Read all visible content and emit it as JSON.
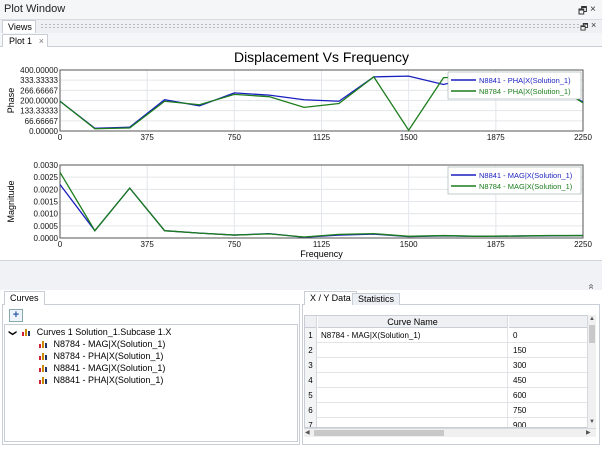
{
  "window": {
    "title": "Plot Window",
    "btn_float": "🗗",
    "btn_close": "×"
  },
  "views": {
    "tab_label": "Views",
    "btn_float": "🗗",
    "btn_close": "×"
  },
  "doc_tab": {
    "label": "Plot 1",
    "close": "×"
  },
  "chart_colors": {
    "blue": "#1a1fbf",
    "green": "#1c7d1c"
  },
  "chart_data": [
    {
      "type": "line",
      "title": "Displacement Vs Frequency",
      "ylabel": "Phase",
      "xlabel": "",
      "x_ticks": [
        "0",
        "375",
        "750",
        "1125",
        "1500",
        "1875",
        "2250"
      ],
      "y_ticks": [
        "0.00000",
        "66.66667",
        "133.33333",
        "200.00000",
        "266.66667",
        "333.33333",
        "400.00000"
      ],
      "xlim": [
        0,
        2250
      ],
      "ylim": [
        0,
        400
      ],
      "legend_position": "top-right",
      "series": [
        {
          "name": "N8841 - PHA|X(Solution_1)",
          "color": "#1a1fbf",
          "x": [
            0,
            150,
            300,
            450,
            600,
            750,
            900,
            1050,
            1200,
            1350,
            1500,
            1650,
            1800,
            1950,
            2100,
            2250
          ],
          "y": [
            195,
            18,
            25,
            205,
            165,
            250,
            235,
            205,
            195,
            355,
            360,
            305,
            360,
            330,
            320,
            190
          ]
        },
        {
          "name": "N8784 - PHA|X(Solution_1)",
          "color": "#1c7d1c",
          "x": [
            0,
            150,
            300,
            450,
            600,
            750,
            900,
            1050,
            1200,
            1350,
            1500,
            1650,
            1800,
            1950,
            2100,
            2250
          ],
          "y": [
            195,
            15,
            20,
            195,
            172,
            240,
            225,
            155,
            180,
            355,
            5,
            350,
            355,
            330,
            325,
            185
          ]
        }
      ]
    },
    {
      "type": "line",
      "title": "",
      "ylabel": "Magnitude",
      "xlabel": "Frequency",
      "x_ticks": [
        "0",
        "375",
        "750",
        "1125",
        "1500",
        "1875",
        "2250"
      ],
      "y_ticks": [
        "0.0000",
        "0.0005",
        "0.0010",
        "0.0015",
        "0.0020",
        "0.0025",
        "0.0030"
      ],
      "xlim": [
        0,
        2250
      ],
      "ylim": [
        0,
        0.003
      ],
      "legend_position": "top-right",
      "series": [
        {
          "name": "N8841 - MAG|X(Solution_1)",
          "color": "#1a1fbf",
          "x": [
            0,
            150,
            300,
            450,
            600,
            750,
            900,
            1050,
            1200,
            1350,
            1500,
            1650,
            1800,
            1950,
            2100,
            2250
          ],
          "y": [
            0.0022,
            0.0003,
            0.00205,
            0.0003,
            0.0002,
            0.00012,
            0.00018,
            3e-05,
            0.00012,
            0.00016,
            6e-05,
            9e-05,
            7e-05,
            8e-05,
            9e-05,
            0.0001
          ]
        },
        {
          "name": "N8784 - MAG|X(Solution_1)",
          "color": "#1c7d1c",
          "x": [
            0,
            150,
            300,
            450,
            600,
            750,
            900,
            1050,
            1200,
            1350,
            1500,
            1650,
            1800,
            1950,
            2100,
            2250
          ],
          "y": [
            0.0027,
            0.0003,
            0.00205,
            0.0003,
            0.0002,
            0.00012,
            0.00017,
            4e-05,
            0.00015,
            0.00018,
            7e-05,
            0.0001,
            7e-05,
            8e-05,
            0.0001,
            0.0001
          ]
        }
      ]
    }
  ],
  "collapse_glyph": "»",
  "curves_panel": {
    "tab": "Curves",
    "add_label": "+",
    "root": {
      "expander": "❯",
      "label": "Curves 1 Solution_1.Subcase 1.X"
    },
    "items": [
      "N8784 - MAG|X(Solution_1)",
      "N8784 - PHA|X(Solution_1)",
      "N8841 - MAG|X(Solution_1)",
      "N8841 - PHA|X(Solution_1)"
    ]
  },
  "data_panel": {
    "tabs": [
      "X / Y Data",
      "Statistics"
    ],
    "header": "Curve Name",
    "rows": [
      {
        "n": "1",
        "name": "N8784 - MAG|X(Solution_1)",
        "value": "0"
      },
      {
        "n": "2",
        "name": "",
        "value": "150"
      },
      {
        "n": "3",
        "name": "",
        "value": "300"
      },
      {
        "n": "4",
        "name": "",
        "value": "450"
      },
      {
        "n": "5",
        "name": "",
        "value": "600"
      },
      {
        "n": "6",
        "name": "",
        "value": "750"
      },
      {
        "n": "7",
        "name": "",
        "value": "900"
      }
    ]
  }
}
